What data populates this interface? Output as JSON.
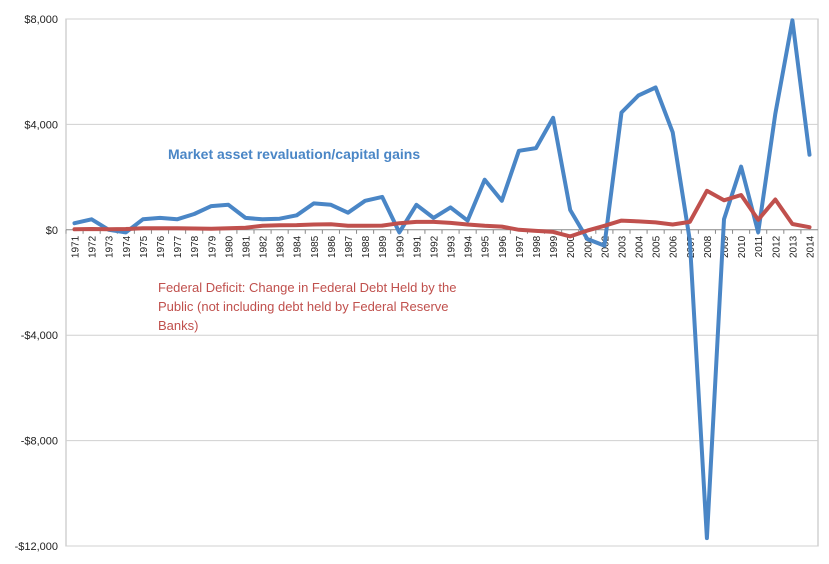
{
  "chart_data": {
    "type": "line",
    "title": "",
    "xlabel": "",
    "ylabel": "",
    "ylim": [
      -12000,
      8000
    ],
    "y_ticks": [
      8000,
      4000,
      0,
      -4000,
      -8000,
      -12000
    ],
    "y_tick_labels": [
      "$8,000",
      "$4,000",
      "$0",
      "-$4,000",
      "-$8,000",
      "-$12,000"
    ],
    "grid": "horizontal",
    "categories": [
      "1971",
      "1972",
      "1973",
      "1974",
      "1975",
      "1976",
      "1977",
      "1978",
      "1979",
      "1980",
      "1981",
      "1982",
      "1983",
      "1984",
      "1985",
      "1986",
      "1987",
      "1988",
      "1989",
      "1990",
      "1991",
      "1992",
      "1993",
      "1994",
      "1995",
      "1996",
      "1997",
      "1998",
      "1999",
      "2000",
      "2001",
      "2002",
      "2003",
      "2004",
      "2005",
      "2006",
      "2007",
      "2008",
      "2009",
      "2010",
      "2011",
      "2012",
      "2013",
      "2014"
    ],
    "series": [
      {
        "name": "Market asset revaluation/capital gains",
        "color": "#4a86c6",
        "values": [
          250,
          400,
          0,
          -100,
          400,
          450,
          400,
          600,
          900,
          950,
          450,
          400,
          420,
          550,
          1000,
          950,
          650,
          1100,
          1250,
          -100,
          950,
          450,
          850,
          350,
          1900,
          1100,
          3000,
          3100,
          4250,
          750,
          -350,
          -600,
          4450,
          5100,
          5400,
          3700,
          -400,
          -11700,
          400,
          2400,
          -100,
          4400,
          7950,
          2850
        ]
      },
      {
        "name": "Federal Deficit: Change in Federal Debt Held by the Public (not including debt held by Federal Reserve Banks)",
        "color": "#c0504d",
        "values": [
          20,
          30,
          20,
          30,
          60,
          60,
          60,
          50,
          40,
          60,
          80,
          150,
          170,
          180,
          200,
          210,
          150,
          150,
          160,
          250,
          300,
          300,
          260,
          200,
          150,
          120,
          0,
          -40,
          -80,
          -250,
          -30,
          150,
          350,
          320,
          280,
          200,
          300,
          1480,
          1120,
          1320,
          380,
          1150,
          220,
          100
        ]
      }
    ]
  },
  "annotations": {
    "blue_label": "Market asset revaluation/capital gains",
    "red_label": "Federal Deficit: Change in Federal Debt Held by the Public (not including debt held by Federal Reserve Banks)"
  }
}
